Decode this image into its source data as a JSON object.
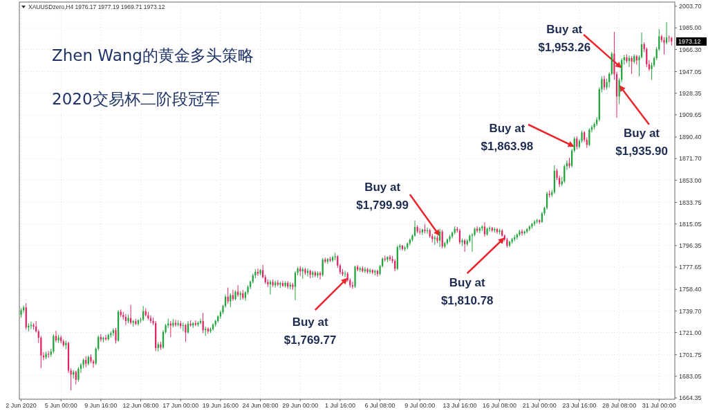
{
  "chart_data": {
    "type": "candlestick",
    "title": "Zhen Wang的黄金多头策略",
    "subtitle": "2020交易杯二阶段冠军",
    "categories": [
      "2 Jun 2020",
      null,
      null,
      null,
      null,
      null,
      null,
      null,
      null,
      null,
      null,
      null,
      null,
      null,
      null,
      null,
      "5 Jun 00:00",
      null,
      null,
      null,
      null,
      null,
      null,
      null,
      null,
      null,
      null,
      null,
      null,
      null,
      null,
      null,
      "9 Jun 16:00",
      null,
      null,
      null,
      null,
      null,
      null,
      null,
      null,
      null,
      null,
      null,
      null,
      null,
      null,
      null,
      "12 Jun 08:00",
      null,
      null,
      null,
      null,
      null,
      null,
      null,
      null,
      null,
      null,
      null,
      null,
      null,
      null,
      null,
      "17 Jun 00:00",
      null,
      null,
      null,
      null,
      null,
      null,
      null,
      null,
      null,
      null,
      null,
      null,
      null,
      null,
      null,
      "19 Jun 16:00",
      null,
      null,
      null,
      null,
      null,
      null,
      null,
      null,
      null,
      null,
      null,
      null,
      null,
      null,
      null,
      "24 Jun 08:00",
      null,
      null,
      null,
      null,
      null,
      null,
      null,
      null,
      null,
      null,
      null,
      null,
      null,
      null,
      null,
      "29 Jun 00:00",
      null,
      null,
      null,
      null,
      null,
      null,
      null,
      null,
      null,
      null,
      null,
      null,
      null,
      null,
      null,
      "1 Jul 16:00",
      null,
      null,
      null,
      null,
      null,
      null,
      null,
      null,
      null,
      null,
      null,
      null,
      null,
      null,
      null,
      "6 Jul 08:00",
      null,
      null,
      null,
      null,
      null,
      null,
      null,
      null,
      null,
      null,
      null,
      null,
      null,
      null,
      null,
      "9 Jul 00:00",
      null,
      null,
      null,
      null,
      null,
      null,
      null,
      null,
      null,
      null,
      null,
      null,
      null,
      null,
      null,
      "13 Jul 16:00",
      null,
      null,
      null,
      null,
      null,
      null,
      null,
      null,
      null,
      null,
      null,
      null,
      null,
      null,
      null,
      "16 Jul 08:00",
      null,
      null,
      null,
      null,
      null,
      null,
      null,
      null,
      null,
      null,
      null,
      null,
      null,
      null,
      null,
      "21 Jul 00:00",
      null,
      null,
      null,
      null,
      null,
      null,
      null,
      null,
      null,
      null,
      null,
      null,
      null,
      null,
      null,
      "23 Jul 16:00",
      null,
      null,
      null,
      null,
      null,
      null,
      null,
      null,
      null,
      null,
      null,
      null,
      null,
      null,
      null,
      "28 Jul 08:00",
      null,
      null,
      null,
      null,
      null,
      null,
      null,
      null,
      null,
      null,
      null,
      null,
      null,
      null,
      null,
      "31 Jul 00:00",
      null,
      null,
      null,
      null,
      null
    ],
    "ohlc": [
      [
        1736.5,
        1742.0,
        1734.0,
        1740.2
      ],
      [
        1740.2,
        1744.5,
        1738.0,
        1742.8
      ],
      [
        1742.8,
        1746.5,
        1723.5,
        1725.4
      ],
      [
        1725.4,
        1729.0,
        1722.0,
        1726.8
      ],
      [
        1726.8,
        1730.5,
        1724.0,
        1727.6
      ],
      [
        1727.6,
        1729.0,
        1723.5,
        1726.2
      ],
      [
        1726.2,
        1731.0,
        1721.0,
        1722.0
      ],
      [
        1722.0,
        1723.5,
        1712.0,
        1716.5
      ],
      [
        1716.5,
        1718.0,
        1690.0,
        1701.0
      ],
      [
        1701.0,
        1704.0,
        1697.0,
        1699.5
      ],
      [
        1699.5,
        1704.5,
        1698.0,
        1702.5
      ],
      [
        1702.5,
        1705.0,
        1699.0,
        1701.8
      ],
      [
        1701.8,
        1707.0,
        1700.0,
        1704.6
      ],
      [
        1704.6,
        1719.5,
        1703.0,
        1718.0
      ],
      [
        1718.0,
        1722.5,
        1712.5,
        1714.2
      ],
      [
        1714.2,
        1719.0,
        1712.0,
        1716.8
      ],
      [
        1716.8,
        1718.5,
        1711.5,
        1713.5
      ],
      [
        1713.5,
        1715.0,
        1708.5,
        1710.0
      ],
      [
        1710.0,
        1714.0,
        1706.5,
        1712.0
      ],
      [
        1712.0,
        1713.0,
        1686.0,
        1688.0
      ],
      [
        1688.0,
        1690.0,
        1671.0,
        1684.5
      ],
      [
        1684.5,
        1688.5,
        1681.0,
        1686.8
      ],
      [
        1686.8,
        1688.0,
        1676.0,
        1680.0
      ],
      [
        1680.0,
        1691.0,
        1678.5,
        1689.6
      ],
      [
        1689.6,
        1694.5,
        1686.0,
        1693.0
      ],
      [
        1693.0,
        1698.5,
        1690.0,
        1697.2
      ],
      [
        1697.2,
        1700.5,
        1691.0,
        1694.0
      ],
      [
        1694.0,
        1701.0,
        1692.5,
        1699.8
      ],
      [
        1699.8,
        1702.0,
        1694.5,
        1696.0
      ],
      [
        1696.0,
        1697.5,
        1690.5,
        1694.2
      ],
      [
        1694.2,
        1708.0,
        1693.0,
        1707.0
      ],
      [
        1707.0,
        1718.5,
        1705.5,
        1717.0
      ],
      [
        1717.0,
        1719.5,
        1713.0,
        1715.0
      ],
      [
        1715.0,
        1717.5,
        1712.5,
        1716.4
      ],
      [
        1716.4,
        1719.0,
        1714.0,
        1715.2
      ],
      [
        1715.2,
        1720.0,
        1714.0,
        1718.8
      ],
      [
        1718.8,
        1722.0,
        1716.5,
        1720.5
      ],
      [
        1720.5,
        1724.5,
        1718.0,
        1723.2
      ],
      [
        1723.2,
        1725.0,
        1711.5,
        1714.0
      ],
      [
        1714.0,
        1740.5,
        1713.0,
        1739.0
      ],
      [
        1739.0,
        1741.0,
        1734.5,
        1736.2
      ],
      [
        1736.2,
        1739.0,
        1732.0,
        1734.5
      ],
      [
        1734.5,
        1737.0,
        1727.5,
        1731.0
      ],
      [
        1731.0,
        1736.5,
        1729.0,
        1733.6
      ],
      [
        1733.6,
        1745.0,
        1728.0,
        1729.5
      ],
      [
        1729.5,
        1732.0,
        1726.0,
        1730.8
      ],
      [
        1730.8,
        1733.0,
        1727.5,
        1728.4
      ],
      [
        1728.4,
        1732.5,
        1727.0,
        1731.6
      ],
      [
        1731.6,
        1734.0,
        1729.5,
        1732.2
      ],
      [
        1732.2,
        1744.0,
        1731.0,
        1739.4
      ],
      [
        1739.4,
        1742.0,
        1735.0,
        1736.0
      ],
      [
        1736.0,
        1739.0,
        1732.0,
        1733.4
      ],
      [
        1733.4,
        1736.0,
        1729.0,
        1731.0
      ],
      [
        1731.0,
        1734.0,
        1727.5,
        1729.2
      ],
      [
        1729.2,
        1731.0,
        1705.0,
        1707.5
      ],
      [
        1707.5,
        1712.5,
        1704.5,
        1710.8
      ],
      [
        1710.8,
        1713.0,
        1706.0,
        1708.0
      ],
      [
        1708.0,
        1723.0,
        1707.0,
        1721.5
      ],
      [
        1721.5,
        1728.5,
        1720.0,
        1727.2
      ],
      [
        1727.2,
        1733.0,
        1725.0,
        1728.8
      ],
      [
        1728.8,
        1731.0,
        1717.0,
        1727.0
      ],
      [
        1727.0,
        1732.5,
        1725.5,
        1729.4
      ],
      [
        1729.4,
        1732.0,
        1726.0,
        1727.6
      ],
      [
        1727.6,
        1731.5,
        1726.5,
        1729.0
      ],
      [
        1729.0,
        1731.0,
        1724.5,
        1726.8
      ],
      [
        1726.8,
        1729.5,
        1722.0,
        1727.4
      ],
      [
        1727.4,
        1728.5,
        1713.0,
        1721.0
      ],
      [
        1721.0,
        1731.0,
        1720.0,
        1728.6
      ],
      [
        1728.6,
        1731.5,
        1726.0,
        1727.2
      ],
      [
        1727.2,
        1730.0,
        1725.0,
        1729.0
      ],
      [
        1729.0,
        1731.5,
        1726.5,
        1727.8
      ],
      [
        1727.8,
        1730.5,
        1726.0,
        1729.4
      ],
      [
        1729.4,
        1733.0,
        1728.0,
        1731.0
      ],
      [
        1731.0,
        1738.0,
        1720.5,
        1723.0
      ],
      [
        1723.0,
        1726.0,
        1718.0,
        1724.2
      ],
      [
        1724.2,
        1725.5,
        1720.0,
        1722.0
      ],
      [
        1722.0,
        1725.5,
        1720.5,
        1724.0
      ],
      [
        1724.0,
        1729.0,
        1722.5,
        1727.8
      ],
      [
        1727.8,
        1732.0,
        1726.0,
        1731.0
      ],
      [
        1731.0,
        1736.0,
        1729.5,
        1735.0
      ],
      [
        1735.0,
        1740.0,
        1733.0,
        1738.6
      ],
      [
        1738.6,
        1745.0,
        1737.0,
        1744.0
      ],
      [
        1744.0,
        1754.0,
        1742.5,
        1752.0
      ],
      [
        1752.0,
        1760.0,
        1746.0,
        1748.0
      ],
      [
        1748.0,
        1755.0,
        1743.0,
        1753.4
      ],
      [
        1753.4,
        1758.0,
        1748.5,
        1750.0
      ],
      [
        1750.0,
        1757.5,
        1749.0,
        1756.4
      ],
      [
        1756.4,
        1762.0,
        1752.0,
        1753.6
      ],
      [
        1753.6,
        1757.0,
        1749.0,
        1755.0
      ],
      [
        1755.0,
        1758.0,
        1749.5,
        1751.0
      ],
      [
        1751.0,
        1757.0,
        1748.5,
        1755.8
      ],
      [
        1755.8,
        1762.0,
        1754.0,
        1760.6
      ],
      [
        1760.6,
        1766.0,
        1758.5,
        1765.0
      ],
      [
        1765.0,
        1772.0,
        1763.5,
        1770.4
      ],
      [
        1770.4,
        1776.0,
        1768.0,
        1773.6
      ],
      [
        1773.6,
        1776.5,
        1770.0,
        1772.0
      ],
      [
        1772.0,
        1776.0,
        1770.5,
        1775.0
      ],
      [
        1775.0,
        1779.5,
        1768.0,
        1769.0
      ],
      [
        1769.0,
        1771.0,
        1763.0,
        1764.6
      ],
      [
        1764.6,
        1767.0,
        1760.5,
        1762.8
      ],
      [
        1762.8,
        1766.5,
        1754.0,
        1764.8
      ],
      [
        1764.8,
        1767.0,
        1760.5,
        1762.0
      ],
      [
        1762.0,
        1766.0,
        1760.0,
        1764.2
      ],
      [
        1764.2,
        1766.5,
        1761.0,
        1762.6
      ],
      [
        1762.6,
        1765.0,
        1759.5,
        1763.8
      ],
      [
        1763.8,
        1766.0,
        1760.5,
        1761.4
      ],
      [
        1761.4,
        1765.5,
        1760.0,
        1764.0
      ],
      [
        1764.0,
        1765.5,
        1759.0,
        1760.8
      ],
      [
        1760.8,
        1764.5,
        1758.5,
        1762.4
      ],
      [
        1762.4,
        1764.0,
        1758.0,
        1760.6
      ],
      [
        1760.6,
        1774.0,
        1749.0,
        1772.8
      ],
      [
        1772.8,
        1778.0,
        1770.5,
        1776.4
      ],
      [
        1776.4,
        1778.5,
        1770.0,
        1774.0
      ],
      [
        1774.0,
        1777.5,
        1767.5,
        1775.8
      ],
      [
        1775.8,
        1777.0,
        1771.0,
        1772.6
      ],
      [
        1772.6,
        1776.5,
        1769.5,
        1774.4
      ],
      [
        1774.4,
        1775.5,
        1768.0,
        1771.0
      ],
      [
        1771.0,
        1774.5,
        1768.5,
        1773.2
      ],
      [
        1773.2,
        1774.5,
        1769.0,
        1770.4
      ],
      [
        1770.4,
        1774.0,
        1768.5,
        1772.6
      ],
      [
        1772.6,
        1774.0,
        1767.0,
        1770.8
      ],
      [
        1770.8,
        1785.5,
        1769.5,
        1784.2
      ],
      [
        1784.2,
        1786.0,
        1781.0,
        1782.4
      ],
      [
        1782.4,
        1785.5,
        1780.5,
        1784.6
      ],
      [
        1784.6,
        1786.5,
        1782.0,
        1783.4
      ],
      [
        1783.4,
        1787.5,
        1782.0,
        1786.2
      ],
      [
        1786.2,
        1790.0,
        1783.5,
        1787.0
      ],
      [
        1787.0,
        1788.0,
        1777.0,
        1779.0
      ],
      [
        1779.0,
        1780.5,
        1771.5,
        1773.4
      ],
      [
        1773.4,
        1776.0,
        1770.0,
        1771.6
      ],
      [
        1771.6,
        1774.5,
        1769.0,
        1772.0
      ],
      [
        1772.0,
        1773.5,
        1765.0,
        1766.4
      ],
      [
        1766.4,
        1768.0,
        1760.0,
        1762.0
      ],
      [
        1762.0,
        1765.0,
        1759.0,
        1760.8
      ],
      [
        1760.8,
        1779.0,
        1759.5,
        1778.0
      ],
      [
        1778.0,
        1779.5,
        1774.0,
        1775.4
      ],
      [
        1775.4,
        1778.0,
        1773.5,
        1776.6
      ],
      [
        1776.6,
        1778.5,
        1773.0,
        1774.2
      ],
      [
        1774.2,
        1777.5,
        1772.5,
        1775.8
      ],
      [
        1775.8,
        1777.0,
        1772.0,
        1773.6
      ],
      [
        1773.6,
        1776.5,
        1772.0,
        1775.0
      ],
      [
        1775.0,
        1776.0,
        1771.5,
        1773.0
      ],
      [
        1773.0,
        1775.5,
        1770.5,
        1774.4
      ],
      [
        1774.4,
        1775.5,
        1769.5,
        1771.8
      ],
      [
        1771.8,
        1779.5,
        1770.5,
        1778.6
      ],
      [
        1778.6,
        1786.0,
        1777.5,
        1785.0
      ],
      [
        1785.0,
        1787.5,
        1782.5,
        1784.2
      ],
      [
        1784.2,
        1787.0,
        1782.0,
        1786.4
      ],
      [
        1786.4,
        1788.0,
        1783.0,
        1784.6
      ],
      [
        1784.6,
        1787.5,
        1781.0,
        1783.0
      ],
      [
        1783.0,
        1784.5,
        1774.0,
        1776.2
      ],
      [
        1776.2,
        1796.5,
        1775.0,
        1795.0
      ],
      [
        1795.0,
        1797.5,
        1792.5,
        1796.2
      ],
      [
        1796.2,
        1797.0,
        1792.0,
        1793.4
      ],
      [
        1793.4,
        1796.0,
        1791.5,
        1794.6
      ],
      [
        1794.6,
        1799.0,
        1793.0,
        1798.2
      ],
      [
        1798.2,
        1802.5,
        1796.5,
        1801.4
      ],
      [
        1801.4,
        1806.0,
        1800.0,
        1805.0
      ],
      [
        1805.0,
        1818.0,
        1804.0,
        1812.4
      ],
      [
        1812.4,
        1814.0,
        1807.0,
        1808.6
      ],
      [
        1808.6,
        1811.5,
        1806.0,
        1807.8
      ],
      [
        1807.8,
        1811.0,
        1805.5,
        1810.2
      ],
      [
        1810.2,
        1815.0,
        1807.0,
        1808.8
      ],
      [
        1808.8,
        1812.0,
        1806.5,
        1809.6
      ],
      [
        1809.6,
        1811.0,
        1803.0,
        1804.4
      ],
      [
        1804.4,
        1806.5,
        1799.0,
        1802.0
      ],
      [
        1802.0,
        1805.0,
        1797.0,
        1803.2
      ],
      [
        1803.2,
        1805.0,
        1798.5,
        1800.6
      ],
      [
        1800.6,
        1811.0,
        1795.0,
        1808.4
      ],
      [
        1808.4,
        1810.0,
        1794.0,
        1795.6
      ],
      [
        1795.6,
        1799.5,
        1794.0,
        1798.4
      ],
      [
        1798.4,
        1802.5,
        1797.0,
        1801.6
      ],
      [
        1801.6,
        1805.5,
        1799.5,
        1804.2
      ],
      [
        1804.2,
        1808.5,
        1802.5,
        1807.6
      ],
      [
        1807.6,
        1813.0,
        1806.0,
        1810.8
      ],
      [
        1810.8,
        1812.5,
        1807.5,
        1809.4
      ],
      [
        1809.4,
        1811.0,
        1797.5,
        1799.2
      ],
      [
        1799.2,
        1802.5,
        1796.0,
        1800.8
      ],
      [
        1800.8,
        1802.0,
        1791.0,
        1797.6
      ],
      [
        1797.6,
        1802.0,
        1796.0,
        1800.4
      ],
      [
        1800.4,
        1806.0,
        1799.0,
        1804.8
      ],
      [
        1804.8,
        1807.0,
        1791.0,
        1805.6
      ],
      [
        1805.6,
        1812.0,
        1804.5,
        1811.0
      ],
      [
        1811.0,
        1813.0,
        1807.5,
        1809.2
      ],
      [
        1809.2,
        1812.5,
        1807.0,
        1811.4
      ],
      [
        1811.4,
        1814.0,
        1809.0,
        1812.8
      ],
      [
        1812.8,
        1816.5,
        1804.0,
        1806.0
      ],
      [
        1806.0,
        1812.0,
        1805.0,
        1810.8
      ],
      [
        1810.8,
        1813.0,
        1808.5,
        1811.6
      ],
      [
        1811.6,
        1812.5,
        1808.0,
        1809.4
      ],
      [
        1809.4,
        1812.0,
        1807.5,
        1810.6
      ],
      [
        1810.6,
        1811.5,
        1806.5,
        1808.2
      ],
      [
        1808.2,
        1811.0,
        1806.0,
        1809.4
      ],
      [
        1809.4,
        1810.5,
        1804.0,
        1805.0
      ],
      [
        1805.0,
        1806.0,
        1800.0,
        1801.6
      ],
      [
        1801.6,
        1803.0,
        1794.5,
        1796.2
      ],
      [
        1796.2,
        1800.5,
        1795.0,
        1799.6
      ],
      [
        1799.6,
        1803.0,
        1798.0,
        1801.8
      ],
      [
        1801.8,
        1805.5,
        1800.0,
        1803.4
      ],
      [
        1803.4,
        1807.0,
        1801.5,
        1805.8
      ],
      [
        1805.8,
        1810.0,
        1804.5,
        1808.6
      ],
      [
        1808.6,
        1810.5,
        1805.0,
        1807.0
      ],
      [
        1807.0,
        1809.5,
        1805.5,
        1808.4
      ],
      [
        1808.4,
        1811.5,
        1807.0,
        1810.6
      ],
      [
        1810.6,
        1814.0,
        1809.0,
        1812.8
      ],
      [
        1812.8,
        1816.0,
        1811.0,
        1815.2
      ],
      [
        1815.2,
        1818.5,
        1813.5,
        1817.0
      ],
      [
        1817.0,
        1819.5,
        1815.5,
        1818.2
      ],
      [
        1818.2,
        1819.0,
        1815.0,
        1816.8
      ],
      [
        1816.8,
        1825.5,
        1816.0,
        1824.2
      ],
      [
        1824.2,
        1830.0,
        1822.5,
        1829.0
      ],
      [
        1829.0,
        1843.0,
        1827.5,
        1841.4
      ],
      [
        1841.4,
        1844.0,
        1838.0,
        1840.2
      ],
      [
        1840.2,
        1844.5,
        1838.5,
        1842.6
      ],
      [
        1842.6,
        1866.0,
        1841.0,
        1861.2
      ],
      [
        1861.2,
        1863.0,
        1853.0,
        1855.0
      ],
      [
        1855.0,
        1857.0,
        1847.0,
        1849.4
      ],
      [
        1849.4,
        1856.0,
        1848.0,
        1852.0
      ],
      [
        1852.0,
        1866.5,
        1850.5,
        1865.0
      ],
      [
        1865.0,
        1870.0,
        1862.0,
        1867.8
      ],
      [
        1867.8,
        1872.5,
        1863.5,
        1865.4
      ],
      [
        1865.4,
        1880.0,
        1864.0,
        1878.6
      ],
      [
        1878.6,
        1890.5,
        1877.0,
        1889.0
      ],
      [
        1889.0,
        1891.0,
        1879.5,
        1882.0
      ],
      [
        1882.0,
        1888.5,
        1880.5,
        1887.0
      ],
      [
        1887.0,
        1896.0,
        1885.5,
        1894.4
      ],
      [
        1894.4,
        1895.5,
        1886.0,
        1888.0
      ],
      [
        1888.0,
        1890.0,
        1881.0,
        1883.6
      ],
      [
        1883.6,
        1898.0,
        1882.5,
        1896.8
      ],
      [
        1896.8,
        1900.5,
        1894.5,
        1899.0
      ],
      [
        1899.0,
        1903.0,
        1897.0,
        1901.6
      ],
      [
        1901.6,
        1907.5,
        1900.0,
        1905.4
      ],
      [
        1905.4,
        1933.5,
        1904.0,
        1931.8
      ],
      [
        1931.8,
        1943.0,
        1929.0,
        1940.6
      ],
      [
        1940.6,
        1943.5,
        1931.0,
        1933.4
      ],
      [
        1933.4,
        1941.0,
        1931.5,
        1938.0
      ],
      [
        1938.0,
        1946.5,
        1933.5,
        1945.2
      ],
      [
        1945.2,
        1964.0,
        1944.0,
        1962.6
      ],
      [
        1962.6,
        1981.5,
        1940.0,
        1944.8
      ],
      [
        1944.8,
        1947.0,
        1907.0,
        1925.6
      ],
      [
        1925.6,
        1941.5,
        1919.0,
        1939.8
      ],
      [
        1939.8,
        1958.5,
        1938.0,
        1957.0
      ],
      [
        1957.0,
        1961.5,
        1953.0,
        1959.4
      ],
      [
        1959.4,
        1962.0,
        1954.5,
        1956.2
      ],
      [
        1956.2,
        1961.0,
        1951.0,
        1958.8
      ],
      [
        1958.8,
        1960.5,
        1945.0,
        1955.6
      ],
      [
        1955.6,
        1962.0,
        1954.0,
        1960.4
      ],
      [
        1960.4,
        1961.5,
        1953.0,
        1956.8
      ],
      [
        1956.8,
        1961.0,
        1943.0,
        1959.6
      ],
      [
        1959.6,
        1981.0,
        1958.5,
        1970.8
      ],
      [
        1970.8,
        1972.5,
        1964.0,
        1966.6
      ],
      [
        1966.6,
        1968.0,
        1951.0,
        1953.4
      ],
      [
        1953.4,
        1957.0,
        1947.5,
        1949.2
      ],
      [
        1949.2,
        1955.0,
        1940.0,
        1952.6
      ],
      [
        1952.6,
        1960.0,
        1951.0,
        1958.8
      ],
      [
        1958.8,
        1968.5,
        1957.0,
        1966.4
      ],
      [
        1966.4,
        1984.0,
        1965.0,
        1977.6
      ],
      [
        1977.6,
        1979.0,
        1972.5,
        1974.4
      ],
      [
        1974.4,
        1977.0,
        1962.0,
        1972.0
      ],
      [
        1972.0,
        1990.0,
        1970.5,
        1976.6
      ],
      [
        1976.6,
        1978.5,
        1972.5,
        1976.2
      ],
      [
        1976.17,
        1977.19,
        1969.71,
        1973.12
      ]
    ],
    "colors": [
      "#1fa33a",
      "#1fa33a",
      "#e0245e",
      "#1fa33a",
      "#1fa33a",
      "#e0245e",
      "#e0245e",
      "#e0245e",
      "#e0245e",
      "#e0245e",
      "#1fa33a",
      "#e0245e",
      "#1fa33a",
      "#1fa33a",
      "#e0245e",
      "#1fa33a",
      "#e0245e",
      "#e0245e",
      "#1fa33a",
      "#e0245e",
      "#e0245e",
      "#1fa33a",
      "#e0245e",
      "#1fa33a",
      "#1fa33a",
      "#1fa33a",
      "#e0245e",
      "#1fa33a",
      "#e0245e",
      "#e0245e",
      "#1fa33a",
      "#1fa33a",
      "#e0245e",
      "#1fa33a",
      "#e0245e",
      "#1fa33a",
      "#1fa33a",
      "#1fa33a",
      "#e0245e",
      "#1fa33a",
      "#e0245e",
      "#e0245e",
      "#e0245e",
      "#1fa33a",
      "#e0245e",
      "#1fa33a",
      "#e0245e",
      "#1fa33a",
      "#1fa33a",
      "#1fa33a",
      "#e0245e",
      "#e0245e",
      "#e0245e",
      "#e0245e",
      "#e0245e",
      "#1fa33a",
      "#e0245e",
      "#1fa33a",
      "#1fa33a",
      "#1fa33a",
      "#e0245e",
      "#1fa33a",
      "#e0245e",
      "#1fa33a",
      "#e0245e",
      "#1fa33a",
      "#e0245e",
      "#1fa33a",
      "#e0245e",
      "#1fa33a",
      "#e0245e",
      "#1fa33a",
      "#1fa33a",
      "#e0245e",
      "#1fa33a",
      "#e0245e",
      "#1fa33a",
      "#1fa33a",
      "#1fa33a",
      "#1fa33a",
      "#1fa33a",
      "#1fa33a",
      "#1fa33a",
      "#e0245e",
      "#1fa33a",
      "#e0245e",
      "#1fa33a",
      "#e0245e",
      "#1fa33a",
      "#e0245e",
      "#1fa33a",
      "#1fa33a",
      "#1fa33a",
      "#1fa33a",
      "#1fa33a",
      "#e0245e",
      "#1fa33a",
      "#e0245e",
      "#e0245e",
      "#e0245e",
      "#1fa33a",
      "#e0245e",
      "#1fa33a",
      "#e0245e",
      "#1fa33a",
      "#e0245e",
      "#1fa33a",
      "#e0245e",
      "#1fa33a",
      "#e0245e",
      "#1fa33a",
      "#1fa33a",
      "#e0245e",
      "#1fa33a",
      "#e0245e",
      "#1fa33a",
      "#e0245e",
      "#1fa33a",
      "#e0245e",
      "#1fa33a",
      "#e0245e",
      "#1fa33a",
      "#e0245e",
      "#1fa33a",
      "#e0245e",
      "#1fa33a",
      "#1fa33a",
      "#e0245e",
      "#e0245e",
      "#e0245e",
      "#1fa33a",
      "#e0245e",
      "#e0245e",
      "#e0245e",
      "#1fa33a",
      "#e0245e",
      "#1fa33a",
      "#e0245e",
      "#1fa33a",
      "#e0245e",
      "#1fa33a",
      "#e0245e",
      "#1fa33a",
      "#e0245e",
      "#1fa33a",
      "#1fa33a",
      "#e0245e",
      "#1fa33a",
      "#e0245e",
      "#e0245e",
      "#e0245e",
      "#1fa33a",
      "#1fa33a",
      "#e0245e",
      "#1fa33a",
      "#1fa33a",
      "#1fa33a",
      "#1fa33a",
      "#1fa33a",
      "#e0245e",
      "#e0245e",
      "#1fa33a",
      "#e0245e",
      "#1fa33a",
      "#e0245e",
      "#e0245e",
      "#1fa33a",
      "#e0245e",
      "#1fa33a",
      "#e0245e",
      "#1fa33a",
      "#1fa33a",
      "#1fa33a",
      "#1fa33a",
      "#1fa33a",
      "#e0245e",
      "#e0245e",
      "#1fa33a",
      "#e0245e",
      "#1fa33a",
      "#1fa33a",
      "#1fa33a",
      "#1fa33a",
      "#e0245e",
      "#1fa33a",
      "#1fa33a",
      "#e0245e",
      "#1fa33a",
      "#1fa33a",
      "#e0245e",
      "#1fa33a",
      "#e0245e",
      "#1fa33a",
      "#e0245e",
      "#e0245e",
      "#e0245e",
      "#1fa33a",
      "#1fa33a",
      "#1fa33a",
      "#1fa33a",
      "#1fa33a",
      "#e0245e",
      "#1fa33a",
      "#1fa33a",
      "#1fa33a",
      "#1fa33a",
      "#1fa33a",
      "#1fa33a",
      "#e0245e",
      "#1fa33a",
      "#1fa33a",
      "#1fa33a",
      "#e0245e",
      "#1fa33a",
      "#1fa33a",
      "#e0245e",
      "#e0245e",
      "#1fa33a",
      "#1fa33a",
      "#1fa33a",
      "#e0245e",
      "#1fa33a",
      "#1fa33a",
      "#e0245e",
      "#1fa33a",
      "#1fa33a",
      "#e0245e",
      "#e0245e",
      "#1fa33a",
      "#1fa33a",
      "#1fa33a",
      "#1fa33a",
      "#1fa33a",
      "#1fa33a",
      "#e0245e",
      "#1fa33a",
      "#1fa33a",
      "#1fa33a",
      "#e0245e",
      "#e0245e",
      "#1fa33a",
      "#1fa33a",
      "#1fa33a",
      "#e0245e",
      "#1fa33a",
      "#e0245e",
      "#1fa33a",
      "#e0245e",
      "#1fa33a",
      "#1fa33a",
      "#e0245e",
      "#e0245e",
      "#e0245e",
      "#1fa33a",
      "#1fa33a",
      "#1fa33a",
      "#1fa33a",
      "#e0245e",
      "#e0245e",
      "#1fa33a",
      "#e0245e",
      "#e0245e"
    ],
    "ylim": [
      1663.2,
      2007.3
    ],
    "yticks": [
      1664.35,
      1683.05,
      1701.75,
      {
        "value": 1721,
        "label": "1721.00"
      },
      {
        "value": 1739.7,
        "label": "1739.70"
      },
      {
        "value": 1758.4,
        "label": "1758.40"
      },
      1777.65,
      1796.35,
      1815.05,
      1833.75,
      {
        "value": 1853,
        "label": "1853.00"
      },
      {
        "value": 1871.7,
        "label": "1871.70"
      },
      {
        "value": 1890.4,
        "label": "1890.40"
      },
      1909.65,
      1928.35,
      1947.05,
      {
        "value": 1966.3,
        "label": "1966.30"
      },
      {
        "value": 1985,
        "label": "1985.00"
      },
      {
        "value": 2003.7,
        "label": "2003.70"
      }
    ],
    "grid": true,
    "annotations": [
      "XAUUSDzero,H4 1976.17 1977.19 1969.71 1973.12",
      "Buy at\n$1,769.77",
      "Buy at\n$1,799.99",
      "Buy at\n$1,810.78",
      "Buy at\n$1,863.98",
      "Buy at\n$1,935.90",
      "Buy at\n$1,953.26",
      "1973.12"
    ]
  }
}
